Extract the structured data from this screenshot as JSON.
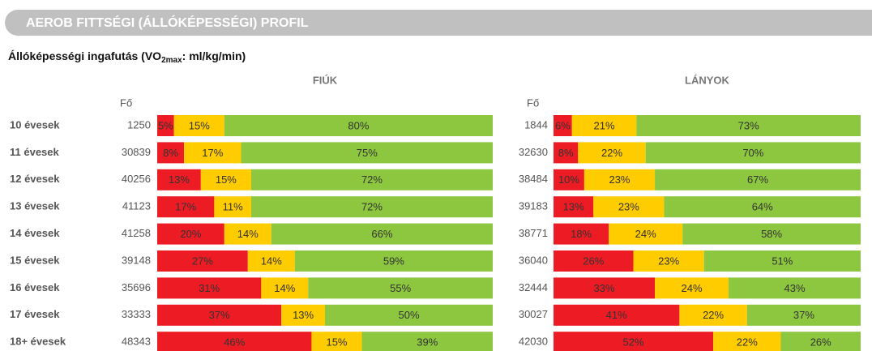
{
  "header": {
    "title": "AEROB FITTSÉGI (ÁLLÓKÉPESSÉGI) PROFIL"
  },
  "subtitle": {
    "before": "Állóképességi ingafutás (VO",
    "sub": "2max",
    "after": ": ml/kg/min)"
  },
  "categories": [
    "10 évesek",
    "11 évesek",
    "12 évesek",
    "13 évesek",
    "14 évesek",
    "15 évesek",
    "16 évesek",
    "17 évesek",
    "18+ évesek"
  ],
  "chart_data": [
    {
      "type": "stacked-bar",
      "title": "FIÚK",
      "count_label": "Fő",
      "counts": [
        1250,
        30839,
        40256,
        41123,
        41258,
        39148,
        35696,
        33333,
        48343
      ],
      "series": [
        {
          "color": "#ed1c24",
          "values": [
            5,
            8,
            13,
            17,
            20,
            27,
            31,
            37,
            46
          ],
          "value_labels": [
            "5%",
            "8%",
            "13%",
            "17%",
            "20%",
            "27%",
            "31%",
            "37%",
            "46%"
          ]
        },
        {
          "color": "#ffcc00",
          "values": [
            15,
            17,
            15,
            11,
            14,
            14,
            14,
            13,
            15
          ],
          "value_labels": [
            "15%",
            "17%",
            "15%",
            "11%",
            "14%",
            "14%",
            "14%",
            "13%",
            "15%"
          ]
        },
        {
          "color": "#8dc63f",
          "values": [
            80,
            75,
            72,
            72,
            66,
            59,
            55,
            50,
            39
          ],
          "value_labels": [
            "80%",
            "75%",
            "72%",
            "72%",
            "66%",
            "59%",
            "55%",
            "50%",
            "39%"
          ]
        }
      ]
    },
    {
      "type": "stacked-bar",
      "title": "LÁNYOK",
      "count_label": "Fő",
      "counts": [
        1844,
        32630,
        38484,
        39183,
        38771,
        36040,
        32444,
        30027,
        42030
      ],
      "series": [
        {
          "color": "#ed1c24",
          "values": [
            6,
            8,
            10,
            13,
            18,
            26,
            33,
            41,
            52
          ],
          "value_labels": [
            "6%",
            "8%",
            "10%",
            "13%",
            "18%",
            "26%",
            "33%",
            "41%",
            "52%"
          ]
        },
        {
          "color": "#ffcc00",
          "values": [
            21,
            22,
            23,
            23,
            24,
            23,
            24,
            22,
            22
          ],
          "value_labels": [
            "21%",
            "22%",
            "23%",
            "23%",
            "24%",
            "23%",
            "24%",
            "22%",
            "22%"
          ]
        },
        {
          "color": "#8dc63f",
          "values": [
            73,
            70,
            67,
            64,
            58,
            51,
            43,
            37,
            26
          ],
          "value_labels": [
            "73%",
            "70%",
            "67%",
            "64%",
            "58%",
            "51%",
            "43%",
            "37%",
            "26%"
          ]
        }
      ]
    }
  ]
}
